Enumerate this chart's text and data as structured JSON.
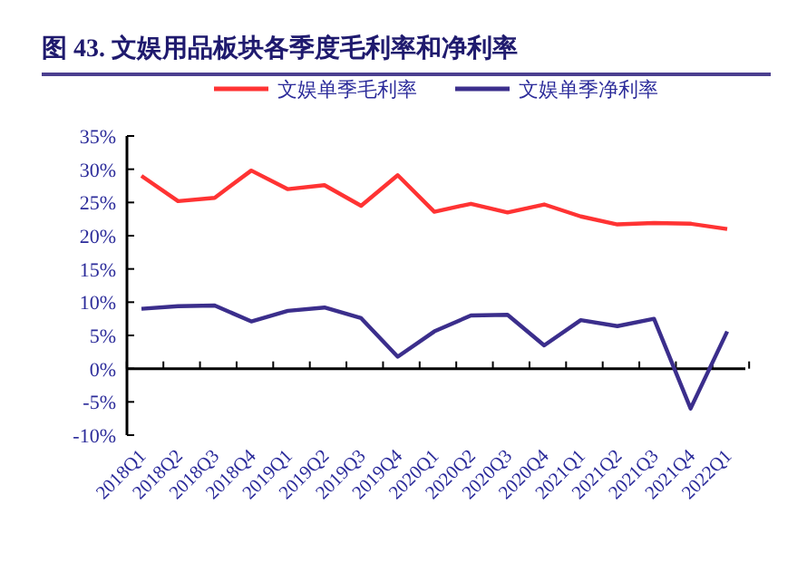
{
  "chart_data": {
    "type": "line",
    "title": "图 43. 文娱用品板块各季度毛利率和净利率",
    "categories": [
      "2018Q1",
      "2018Q2",
      "2018Q3",
      "2018Q4",
      "2019Q1",
      "2019Q2",
      "2019Q3",
      "2019Q4",
      "2020Q1",
      "2020Q2",
      "2020Q3",
      "2020Q4",
      "2021Q1",
      "2021Q2",
      "2021Q3",
      "2021Q4",
      "2022Q1"
    ],
    "series": [
      {
        "name": "文娱单季毛利率",
        "color": "#ff3333",
        "values": [
          29.0,
          25.2,
          25.7,
          29.8,
          27.0,
          27.6,
          24.5,
          29.1,
          23.6,
          24.8,
          23.5,
          24.7,
          22.9,
          21.7,
          21.9,
          21.8,
          21.0
        ]
      },
      {
        "name": "文娱单季净利率",
        "color": "#3b2e8c",
        "values": [
          9.0,
          9.4,
          9.5,
          7.1,
          8.7,
          9.2,
          7.6,
          1.8,
          5.6,
          8.0,
          8.1,
          3.5,
          7.3,
          6.4,
          7.5,
          -6.0,
          5.6
        ]
      }
    ],
    "ylim": [
      -10,
      35
    ],
    "yticks": [
      {
        "value": -10,
        "label": "-10%"
      },
      {
        "value": -5,
        "label": "-5%"
      },
      {
        "value": 0,
        "label": "0%"
      },
      {
        "value": 5,
        "label": "5%"
      },
      {
        "value": 10,
        "label": "10%"
      },
      {
        "value": 15,
        "label": "15%"
      },
      {
        "value": 20,
        "label": "20%"
      },
      {
        "value": 25,
        "label": "25%"
      },
      {
        "value": 30,
        "label": "30%"
      },
      {
        "value": 35,
        "label": "35%"
      }
    ],
    "legend": "top"
  }
}
